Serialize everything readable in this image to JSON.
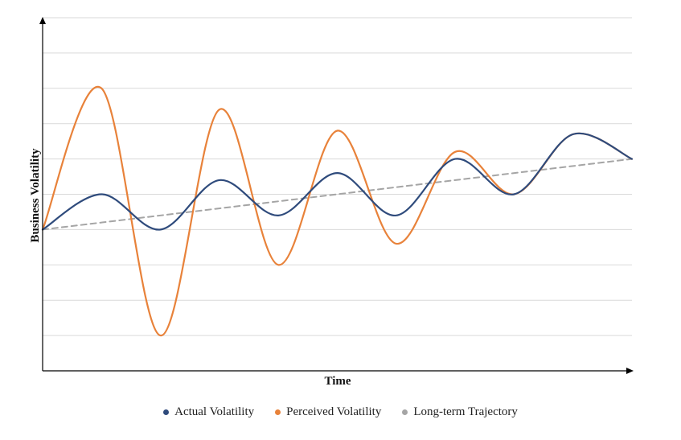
{
  "chart_data": {
    "type": "line",
    "title": "",
    "xlabel": "Time",
    "ylabel": "Business Volatility",
    "x_range": [
      0,
      10
    ],
    "ylim": [
      0,
      10
    ],
    "grid": true,
    "tick_labels_shown": false,
    "legend_position": "bottom",
    "series": [
      {
        "name": "Actual Volatility",
        "color": "#2F4B7C",
        "style": "solid",
        "x": [
          0,
          1,
          2,
          3,
          4,
          5,
          6,
          7,
          8,
          9,
          10
        ],
        "values": [
          4.0,
          5.0,
          4.0,
          5.4,
          4.4,
          5.6,
          4.4,
          6.0,
          5.0,
          6.7,
          6.0
        ]
      },
      {
        "name": "Perceived Volatility",
        "color": "#E8823A",
        "style": "solid",
        "x": [
          0,
          1,
          2,
          3,
          4,
          5,
          6,
          7,
          8,
          9,
          10
        ],
        "values": [
          4.0,
          8.0,
          1.0,
          7.4,
          3.0,
          6.8,
          3.6,
          6.2,
          5.0,
          6.7,
          6.0
        ]
      },
      {
        "name": "Long-term Trajectory",
        "color": "#A5A5A5",
        "style": "dashed",
        "x": [
          0,
          10
        ],
        "values": [
          4.0,
          6.0
        ]
      }
    ]
  }
}
